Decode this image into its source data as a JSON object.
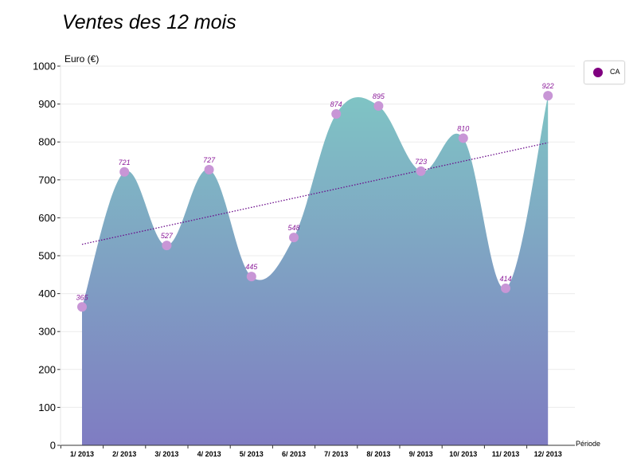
{
  "chart_data": {
    "type": "area",
    "title": "Ventes des 12 mois",
    "xlabel": "Période",
    "ylabel": "Euro (€)",
    "categories": [
      "1/ 2013",
      "2/ 2013",
      "3/ 2013",
      "4/ 2013",
      "5/ 2013",
      "6/ 2013",
      "7/ 2013",
      "8/ 2013",
      "9/ 2013",
      "10/ 2013",
      "11/ 2013",
      "12/ 2013"
    ],
    "series": [
      {
        "name": "CA",
        "values": [
          365,
          721,
          527,
          727,
          445,
          548,
          874,
          895,
          723,
          810,
          414,
          922
        ]
      }
    ],
    "trendline": {
      "style": "dotted",
      "start": 530,
      "end": 798
    },
    "ylim": [
      0,
      1000
    ],
    "yticks": [
      0,
      100,
      200,
      300,
      400,
      500,
      600,
      700,
      800,
      900,
      1000
    ],
    "grid": true,
    "legend_position": "top-right",
    "colors": {
      "area_top": "#7fc4c4",
      "area_bottom": "#7f7cc2",
      "marker": "#c896d6",
      "label": "#8b1a9a",
      "trend": "#6a0a8a",
      "legend_dot": "#800080"
    }
  }
}
